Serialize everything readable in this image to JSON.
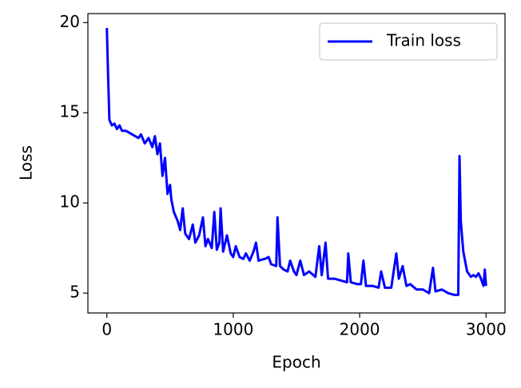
{
  "chart_data": {
    "type": "line",
    "xlabel": "Epoch",
    "ylabel": "Loss",
    "x": [
      0,
      10,
      20,
      40,
      60,
      80,
      100,
      120,
      150,
      200,
      250,
      270,
      300,
      330,
      360,
      380,
      400,
      420,
      440,
      460,
      480,
      500,
      510,
      530,
      560,
      580,
      600,
      620,
      650,
      680,
      700,
      730,
      760,
      780,
      800,
      830,
      850,
      870,
      890,
      900,
      920,
      950,
      980,
      1000,
      1020,
      1050,
      1080,
      1100,
      1130,
      1160,
      1180,
      1200,
      1250,
      1280,
      1300,
      1340,
      1350,
      1370,
      1400,
      1430,
      1450,
      1480,
      1500,
      1530,
      1560,
      1600,
      1650,
      1680,
      1700,
      1730,
      1750,
      1800,
      1850,
      1900,
      1910,
      1930,
      1980,
      2010,
      2030,
      2050,
      2100,
      2150,
      2170,
      2200,
      2250,
      2290,
      2310,
      2340,
      2370,
      2400,
      2450,
      2500,
      2550,
      2580,
      2600,
      2650,
      2700,
      2750,
      2780,
      2790,
      2800,
      2820,
      2850,
      2880,
      2900,
      2920,
      2940,
      2960,
      2980,
      2990,
      3000
    ],
    "series": [
      {
        "name": "Train loss",
        "color": "#0000ff",
        "values": [
          19.7,
          17,
          14.6,
          14.3,
          14.4,
          14.1,
          14.3,
          14.0,
          14.0,
          13.8,
          13.6,
          13.8,
          13.3,
          13.6,
          13.1,
          13.7,
          12.7,
          13.3,
          11.5,
          12.5,
          10.5,
          11.0,
          10.2,
          9.5,
          9.0,
          8.5,
          9.7,
          8.3,
          8.0,
          8.8,
          7.8,
          8.2,
          9.2,
          7.6,
          8.0,
          7.5,
          9.5,
          7.4,
          7.8,
          9.7,
          7.3,
          8.2,
          7.2,
          7.0,
          7.6,
          7.0,
          6.9,
          7.2,
          6.8,
          7.3,
          7.8,
          6.8,
          6.9,
          7.0,
          6.6,
          6.5,
          9.2,
          6.5,
          6.3,
          6.2,
          6.8,
          6.2,
          6.0,
          6.8,
          6.0,
          6.2,
          5.9,
          7.6,
          6.0,
          7.8,
          5.8,
          5.8,
          5.7,
          5.6,
          7.2,
          5.6,
          5.5,
          5.5,
          6.8,
          5.4,
          5.4,
          5.3,
          6.2,
          5.3,
          5.3,
          7.2,
          5.8,
          6.5,
          5.4,
          5.5,
          5.2,
          5.2,
          5.0,
          6.4,
          5.1,
          5.2,
          5.0,
          4.9,
          4.9,
          12.6,
          9.0,
          7.3,
          6.2,
          5.9,
          6.0,
          5.9,
          6.1,
          5.8,
          5.4,
          6.3,
          5.4
        ]
      }
    ],
    "xlim": [
      -150,
      3150
    ],
    "ylim": [
      3.9,
      20.5
    ],
    "xticks": [
      0,
      1000,
      2000,
      3000
    ],
    "yticks": [
      5,
      10,
      15,
      20
    ],
    "legend": "upper right"
  }
}
